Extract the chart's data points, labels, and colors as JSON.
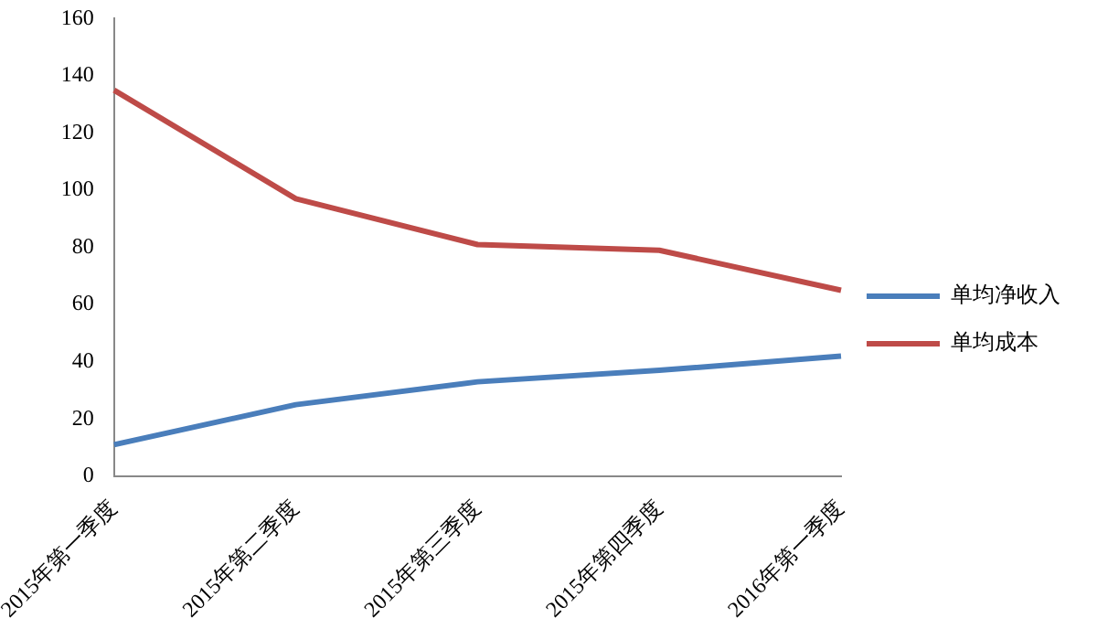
{
  "chart_data": {
    "type": "line",
    "categories": [
      "2015年第一季度",
      "2015年第二季度",
      "2015年第三季度",
      "2015年第四季度",
      "2016年第一季度"
    ],
    "series": [
      {
        "name": "单均净收入",
        "color": "#4a7ebb",
        "values": [
          11,
          25,
          33,
          37,
          42
        ]
      },
      {
        "name": "单均成本",
        "color": "#be4b48",
        "values": [
          135,
          97,
          81,
          79,
          65
        ]
      }
    ],
    "ylim": [
      0,
      160
    ],
    "yticks": [
      0,
      20,
      40,
      60,
      80,
      100,
      120,
      140,
      160
    ],
    "grid": false,
    "legend": "right",
    "marker": "none",
    "line_style": "solid"
  }
}
